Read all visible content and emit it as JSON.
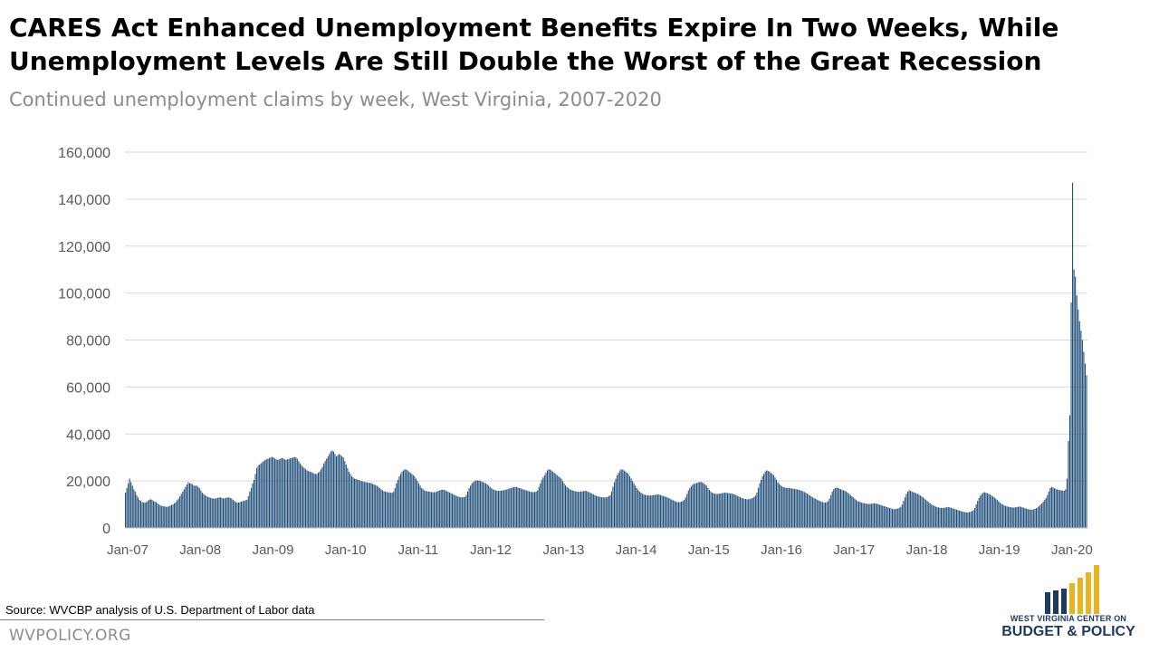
{
  "header": {
    "title_line1": "CARES Act Enhanced Unemployment Benefits Expire In Two Weeks, While",
    "title_line2": "Unemployment Levels Are Still Double the Worst of the Great Recession",
    "subtitle": "Continued unemployment claims by week, West Virginia, 2007-2020"
  },
  "footer": {
    "source": "Source: WVCBP analysis of U.S. Department  of Labor data",
    "website": "WVPOLICY.ORG",
    "logo_line1": "WEST VIRGINIA CENTER ON",
    "logo_line2": "BUDGET & POLICY",
    "logo_colors": [
      "#1f3a60",
      "#e8b422"
    ]
  },
  "chart_data": {
    "type": "bar",
    "title": "Continued unemployment claims by week, West Virginia, 2007-2020",
    "xlabel": "",
    "ylabel": "",
    "ylim": [
      0,
      160000
    ],
    "yticks": [
      0,
      20000,
      40000,
      60000,
      80000,
      100000,
      120000,
      140000,
      160000
    ],
    "ytick_labels": [
      "0",
      "20,000",
      "40,000",
      "60,000",
      "80,000",
      "100,000",
      "120,000",
      "140,000",
      "160,000"
    ],
    "xtick_labels": [
      "Jan-07",
      "Jan-08",
      "Jan-09",
      "Jan-10",
      "Jan-11",
      "Jan-12",
      "Jan-13",
      "Jan-14",
      "Jan-15",
      "Jan-16",
      "Jan-17",
      "Jan-18",
      "Jan-19",
      "Jan-20"
    ],
    "grid": true,
    "legend": "none",
    "bar_color": "#1f4e79",
    "x_start": "2007-01-06",
    "x_step": "1 week",
    "annual_values": {
      "2007": [
        15000,
        17000,
        19000,
        21000,
        19500,
        18000,
        16500,
        15500,
        14000,
        13000,
        12000,
        11500,
        11000,
        10800,
        10800,
        11000,
        11500,
        12000,
        12200,
        12000,
        11500,
        11200,
        11000,
        10500,
        10000,
        9600,
        9400,
        9300,
        9200,
        9000,
        9000,
        9200,
        9500,
        9800,
        10000,
        10500,
        11000,
        11800,
        12500,
        13500,
        14500,
        15500,
        16500,
        17500,
        18500,
        19500,
        19000,
        19000,
        18500,
        18000,
        18000,
        18000
      ],
      "2008": [
        17500,
        17000,
        16000,
        15000,
        14500,
        14000,
        13500,
        13200,
        13000,
        12800,
        12600,
        12500,
        12500,
        12600,
        12800,
        13000,
        13000,
        12800,
        12600,
        12600,
        12800,
        13000,
        13000,
        12800,
        12500,
        12000,
        11500,
        11000,
        10800,
        10800,
        11000,
        11200,
        11400,
        11600,
        11800,
        12000,
        13500,
        15500,
        17000,
        19000,
        20500,
        23000,
        25500,
        26500,
        27000,
        27500,
        28000,
        28500,
        29000,
        29200,
        29500,
        29800
      ],
      "2009": [
        30000,
        30200,
        30000,
        29600,
        29200,
        29000,
        29200,
        29500,
        29800,
        29600,
        29200,
        29000,
        29200,
        29400,
        29600,
        29800,
        30000,
        30200,
        30000,
        29500,
        28500,
        27500,
        26800,
        26000,
        25500,
        25000,
        24500,
        24200,
        24000,
        23800,
        23500,
        23200,
        23000,
        23000,
        23500,
        24000,
        25000,
        26000,
        27500,
        28500,
        29500,
        30500,
        31500,
        32500,
        33000,
        32500,
        31500,
        30500,
        31000,
        31500,
        31000,
        30500
      ],
      "2010": [
        30000,
        28500,
        27000,
        25500,
        24000,
        23000,
        22000,
        21500,
        21000,
        20800,
        20600,
        20400,
        20200,
        20000,
        19800,
        19600,
        19500,
        19400,
        19300,
        19200,
        19000,
        18800,
        18500,
        18200,
        18000,
        17500,
        17000,
        16500,
        16000,
        15700,
        15500,
        15300,
        15200,
        15100,
        15000,
        15000,
        15500,
        17000,
        19000,
        20500,
        22000,
        23000,
        24000,
        24500,
        25000,
        24800,
        24500,
        24000,
        23500,
        23000,
        22500,
        22000
      ],
      "2011": [
        21000,
        20000,
        19000,
        18000,
        17000,
        16500,
        16000,
        15800,
        15600,
        15500,
        15400,
        15300,
        15200,
        15200,
        15300,
        15500,
        15800,
        16000,
        16200,
        16300,
        16200,
        16000,
        15700,
        15400,
        15100,
        14800,
        14500,
        14200,
        13900,
        13600,
        13400,
        13200,
        13100,
        13000,
        13100,
        13200,
        14000,
        15500,
        17000,
        18000,
        19000,
        19500,
        20000,
        20200,
        20300,
        20200,
        20000,
        19800,
        19500,
        19200,
        19000,
        18500
      ],
      "2012": [
        18000,
        17500,
        17000,
        16500,
        16200,
        16000,
        15900,
        15800,
        15800,
        15900,
        16000,
        16100,
        16200,
        16400,
        16600,
        16800,
        17000,
        17200,
        17400,
        17500,
        17400,
        17200,
        17000,
        16800,
        16600,
        16400,
        16200,
        16000,
        15800,
        15600,
        15400,
        15300,
        15200,
        15300,
        15500,
        16000,
        17500,
        19000,
        20500,
        21500,
        22500,
        23500,
        24500,
        25000,
        24800,
        24500,
        24000,
        23500,
        23000,
        22500,
        22000,
        21500
      ],
      "2013": [
        21000,
        20000,
        19000,
        18200,
        17500,
        17000,
        16500,
        16200,
        16000,
        15800,
        15600,
        15500,
        15400,
        15400,
        15500,
        15600,
        15700,
        15800,
        15700,
        15500,
        15200,
        14900,
        14600,
        14300,
        14000,
        13700,
        13500,
        13300,
        13200,
        13100,
        13000,
        13000,
        13000,
        13200,
        13500,
        14000,
        15500,
        17500,
        19500,
        21000,
        22500,
        23500,
        24500,
        25000,
        24800,
        24500,
        24000,
        23500,
        23000,
        22000,
        21000,
        20000
      ],
      "2014": [
        19000,
        18000,
        17000,
        16200,
        15500,
        15000,
        14600,
        14300,
        14100,
        14000,
        13900,
        13800,
        13800,
        13900,
        14000,
        14100,
        14200,
        14300,
        14200,
        14000,
        13800,
        13600,
        13400,
        13200,
        13000,
        12700,
        12400,
        12100,
        11800,
        11500,
        11200,
        11000,
        11000,
        11000,
        11200,
        11500,
        12000,
        13000,
        14500,
        16000,
        17000,
        17800,
        18400,
        18800,
        19000,
        19200,
        19400,
        19500,
        19600,
        19400,
        19000,
        18500
      ],
      "2015": [
        18000,
        17000,
        16200,
        15500,
        15000,
        14800,
        14600,
        14500,
        14500,
        14600,
        14700,
        14800,
        14900,
        15000,
        15000,
        14900,
        14800,
        14700,
        14600,
        14500,
        14300,
        14000,
        13700,
        13400,
        13100,
        12800,
        12600,
        12400,
        12300,
        12200,
        12200,
        12300,
        12500,
        12800,
        13200,
        13800,
        15000,
        17000,
        19000,
        20500,
        22000,
        23000,
        24000,
        24500,
        24300,
        24000,
        23500,
        23000,
        22500,
        21500,
        20500,
        19500
      ],
      "2016": [
        18800,
        18200,
        17700,
        17400,
        17200,
        17100,
        17000,
        17000,
        16900,
        16800,
        16700,
        16600,
        16500,
        16400,
        16200,
        16000,
        15800,
        15600,
        15300,
        15000,
        14600,
        14200,
        13800,
        13400,
        13000,
        12700,
        12400,
        12100,
        11800,
        11500,
        11200,
        11000,
        10800,
        10800,
        11000,
        11400,
        12500,
        14000,
        15500,
        16500,
        17000,
        17200,
        17000,
        16800,
        16500,
        16200,
        16000,
        15800,
        15500,
        15000,
        14500,
        14000
      ],
      "2017": [
        13500,
        13000,
        12500,
        12000,
        11500,
        11200,
        11000,
        10800,
        10600,
        10500,
        10400,
        10300,
        10200,
        10200,
        10300,
        10400,
        10500,
        10400,
        10300,
        10100,
        9900,
        9700,
        9500,
        9300,
        9100,
        8900,
        8700,
        8500,
        8300,
        8100,
        8000,
        8000,
        8100,
        8300,
        8600,
        9000,
        10000,
        11500,
        13000,
        14500,
        15500,
        16000,
        15800,
        15500,
        15200,
        15000,
        14800,
        14500,
        14200,
        13800,
        13400,
        13000
      ],
      "2018": [
        12500,
        12000,
        11500,
        11000,
        10500,
        10000,
        9700,
        9400,
        9100,
        8900,
        8700,
        8600,
        8500,
        8500,
        8600,
        8700,
        8800,
        8900,
        8800,
        8600,
        8400,
        8200,
        8000,
        7800,
        7600,
        7400,
        7200,
        7000,
        6800,
        6700,
        6600,
        6600,
        6700,
        6900,
        7200,
        7600,
        8500,
        10000,
        11500,
        12800,
        13800,
        14500,
        15000,
        15200,
        15000,
        14800,
        14500,
        14200,
        13800,
        13400,
        13000,
        12500
      ],
      "2019": [
        12000,
        11400,
        10800,
        10300,
        9900,
        9600,
        9400,
        9200,
        9000,
        8900,
        8800,
        8700,
        8700,
        8800,
        8900,
        9000,
        9100,
        9000,
        8800,
        8600,
        8400,
        8200,
        8000,
        7900,
        7800,
        7800,
        7900,
        8100,
        8400,
        8800,
        9300,
        9900,
        10500,
        11200,
        12000,
        12800,
        14000,
        15500,
        17000,
        17500,
        17200,
        16900,
        16600,
        16400,
        16300,
        16100,
        16000,
        15900,
        15800,
        16500,
        21000,
        37000
      ],
      "2020": [
        48000,
        96000,
        147000,
        110000,
        107000,
        99000,
        93000,
        88000,
        84000,
        80000,
        75000,
        70000,
        65000
      ]
    }
  }
}
